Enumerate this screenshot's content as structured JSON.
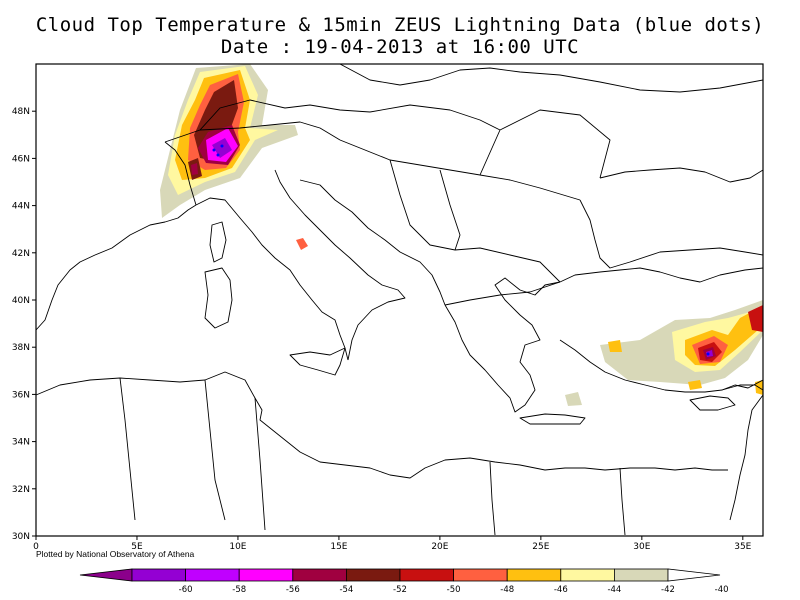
{
  "title_line1": "Cloud Top Temperature & 15min ZEUS Lightning Data (blue dots)",
  "title_line2": "Date : 19-04-2013 at 16:00 UTC",
  "credit": "Plotted by National Observatory of Athena",
  "map": {
    "lon_range": [
      0,
      36
    ],
    "lat_range": [
      30,
      50
    ],
    "lon_ticks": [
      {
        "value": 0,
        "label": "0"
      },
      {
        "value": 5,
        "label": "5E"
      },
      {
        "value": 10,
        "label": "10E"
      },
      {
        "value": 15,
        "label": "15E"
      },
      {
        "value": 20,
        "label": "20E"
      },
      {
        "value": 25,
        "label": "25E"
      },
      {
        "value": 30,
        "label": "30E"
      },
      {
        "value": 35,
        "label": "35E"
      }
    ],
    "lat_ticks": [
      {
        "value": 30,
        "label": "30N"
      },
      {
        "value": 32,
        "label": "32N"
      },
      {
        "value": 34,
        "label": "34N"
      },
      {
        "value": 36,
        "label": "36N"
      },
      {
        "value": 38,
        "label": "38N"
      },
      {
        "value": 40,
        "label": "40N"
      },
      {
        "value": 42,
        "label": "42N"
      },
      {
        "value": 44,
        "label": "44N"
      },
      {
        "value": 46,
        "label": "46N"
      },
      {
        "value": 48,
        "label": "48N"
      }
    ]
  },
  "colorbar": {
    "colors": [
      "#8b008b",
      "#9400d3",
      "#c000ff",
      "#ff00ff",
      "#a00040",
      "#7a1a10",
      "#c81010",
      "#ff6040",
      "#ffc010",
      "#fff8a0",
      "#d8d8b8",
      "#ffffff"
    ],
    "labels": [
      "-60",
      "-58",
      "-56",
      "-54",
      "-52",
      "-50",
      "-48",
      "-46",
      "-44",
      "-42",
      "-40"
    ]
  }
}
